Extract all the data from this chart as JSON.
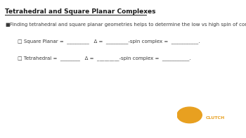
{
  "title": "Tetrahedral and Square Planar Complexes",
  "bullet_symbol": "■",
  "bullet_text": "Finding tetrahedral and square planar geometries helps to determine the low vs high spin of complexes.",
  "line1": "□ Square Planar =  _________   Δ =  _________-spin complex =  ___________.",
  "line2": "□ Tetrahedral =  ________   Δ =  _________-spin complex =  ___________.",
  "bg_color": "#ffffff",
  "text_color": "#3a3a3a",
  "title_color": "#1a1a1a",
  "clutch_bg": "#1e2a3a",
  "clutch_logo_color": "#e8a020",
  "title_fontsize": 6.5,
  "body_fontsize": 5.0,
  "sub_fontsize": 5.0
}
